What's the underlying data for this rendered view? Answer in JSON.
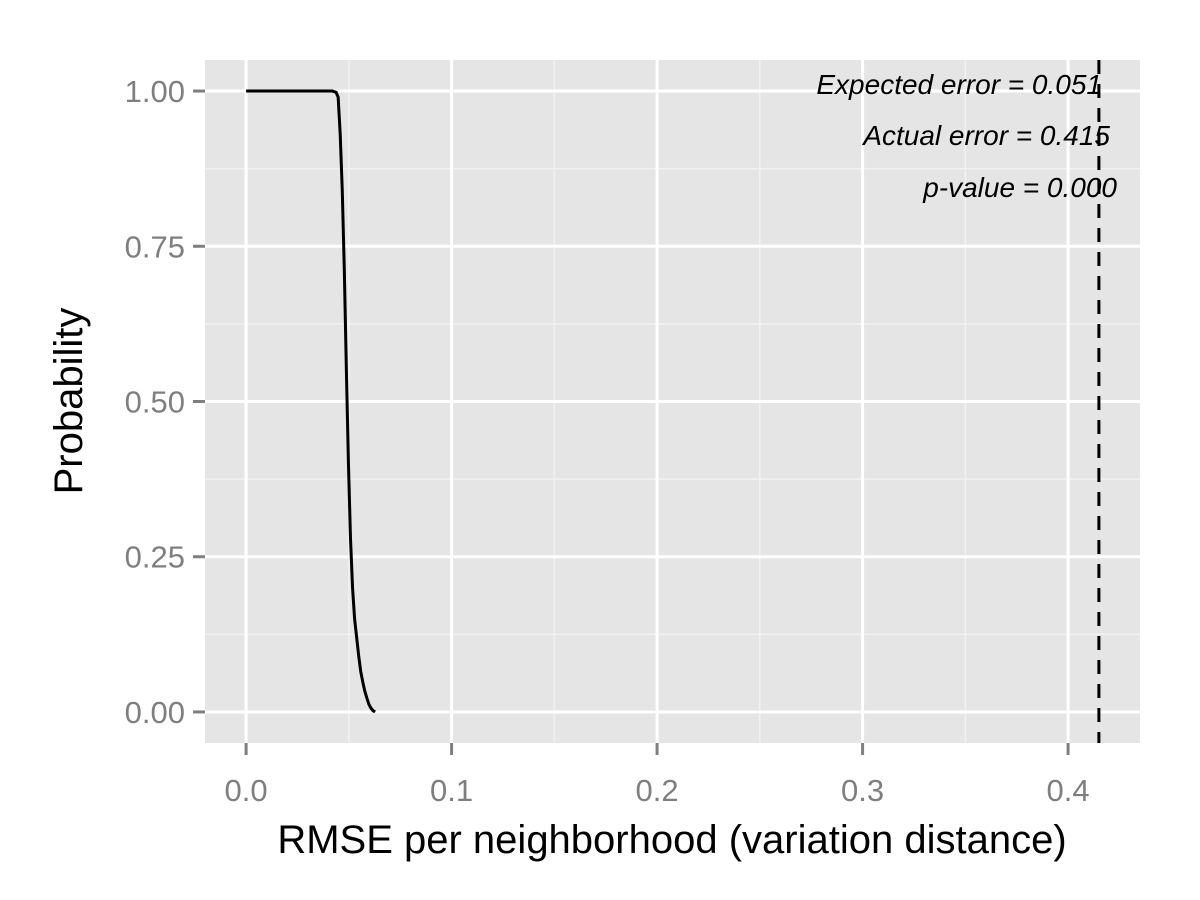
{
  "chart_data": {
    "type": "line",
    "xlabel": "RMSE per neighborhood (variation distance)",
    "ylabel": "Probability",
    "xlim": [
      -0.02,
      0.435
    ],
    "ylim": [
      -0.05,
      1.05
    ],
    "x_ticks": [
      0.0,
      0.1,
      0.2,
      0.3,
      0.4
    ],
    "x_tick_labels": [
      "0.0",
      "0.1",
      "0.2",
      "0.3",
      "0.4"
    ],
    "y_ticks": [
      0.0,
      0.25,
      0.5,
      0.75,
      1.0
    ],
    "y_tick_labels": [
      "0.00",
      "0.25",
      "0.50",
      "0.75",
      "1.00"
    ],
    "grid": true,
    "legend": "none",
    "series": [
      {
        "color": "#000000",
        "x": [
          0.0,
          0.042,
          0.0438,
          0.0448,
          0.0458,
          0.0468,
          0.0478,
          0.0488,
          0.0498,
          0.0508,
          0.0518,
          0.0528,
          0.0538,
          0.0548,
          0.0558,
          0.0568,
          0.0578,
          0.0588,
          0.0598,
          0.0608,
          0.0618,
          0.0628
        ],
        "y": [
          1.0,
          1.0,
          0.998,
          0.99,
          0.93,
          0.84,
          0.71,
          0.55,
          0.4,
          0.28,
          0.2,
          0.15,
          0.12,
          0.09,
          0.065,
          0.048,
          0.033,
          0.022,
          0.012,
          0.006,
          0.002,
          0.0
        ]
      }
    ],
    "vline": {
      "x": 0.415,
      "style": "dashed",
      "color": "#000000"
    },
    "annotations": [
      "Expected error = 0.051",
      "Actual error = 0.415",
      "p-value = 0.000"
    ],
    "colors": {
      "panel_background": "#e5e5e5",
      "grid_major": "#ffffff",
      "grid_minor": "#f2f2f2",
      "tick_mark": "#7f7f7f",
      "tick_label": "#7f7f7f"
    }
  }
}
